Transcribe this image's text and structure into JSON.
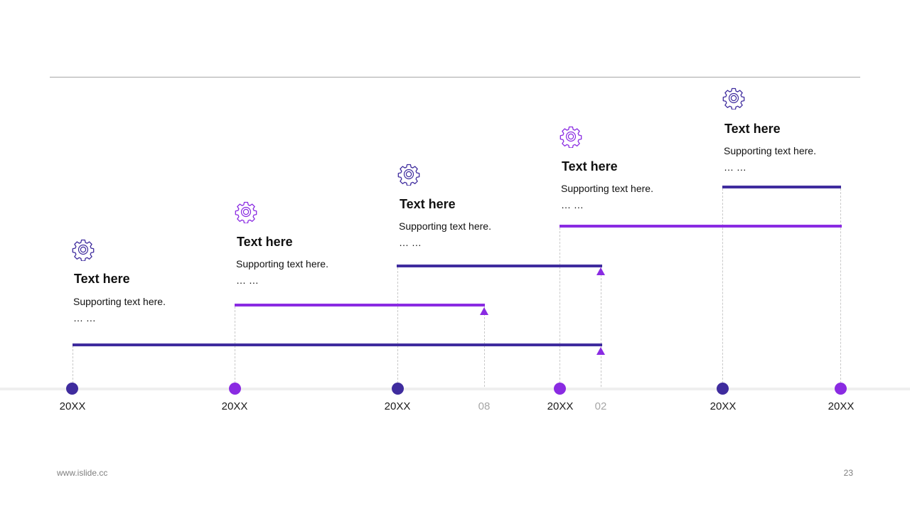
{
  "colors": {
    "indigo": "#3f2c9e",
    "purple": "#8a2be2",
    "axis": "#efefef",
    "guide": "#c9c9c9"
  },
  "milestones": [
    {
      "icon": "gear-icon",
      "title": "Text here",
      "support": "Supporting text here.",
      "ellipsis": "… …",
      "color": "#3f2c9e"
    },
    {
      "icon": "gear-icon",
      "title": "Text here",
      "support": "Supporting text here.",
      "ellipsis": "… …",
      "color": "#8a2be2"
    },
    {
      "icon": "gear-icon",
      "title": "Text here",
      "support": "Supporting text here.",
      "ellipsis": "… …",
      "color": "#3f2c9e"
    },
    {
      "icon": "gear-icon",
      "title": "Text here",
      "support": "Supporting text here.",
      "ellipsis": "… …",
      "color": "#8a2be2"
    },
    {
      "icon": "gear-icon",
      "title": "Text here",
      "support": "Supporting text here.",
      "ellipsis": "… …",
      "color": "#3f2c9e"
    }
  ],
  "axis_labels": [
    "20XX",
    "20XX",
    "20XX",
    "08",
    "20XX",
    "02",
    "20XX",
    "20XX"
  ],
  "footer": {
    "url": "www.islide.cc",
    "page": "23"
  }
}
